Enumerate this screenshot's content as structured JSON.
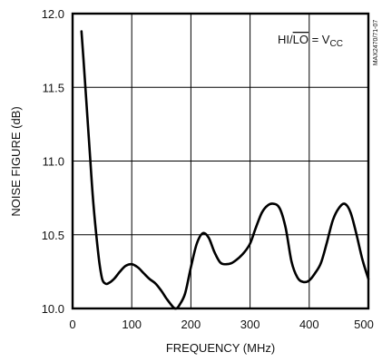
{
  "chart_data": {
    "type": "line",
    "xlabel": "FREQUENCY (MHz)",
    "ylabel": "NOISE FIGURE (dB)",
    "xlim": [
      0,
      500
    ],
    "ylim": [
      10.0,
      12.0
    ],
    "grid": true,
    "x_ticks": [
      "0",
      "100",
      "200",
      "300",
      "400",
      "500"
    ],
    "y_ticks": [
      "10.0",
      "10.5",
      "11.0",
      "11.5",
      "12.0"
    ],
    "annotation": {
      "prefix": "HI/",
      "overbar": "LO",
      "equals": " = V",
      "subscript": "CC"
    },
    "figure_id": "MAX2470/71-07",
    "series": [
      {
        "points": [
          [
            15,
            11.88
          ],
          [
            20,
            11.6
          ],
          [
            25,
            11.3
          ],
          [
            30,
            11.0
          ],
          [
            35,
            10.72
          ],
          [
            40,
            10.5
          ],
          [
            45,
            10.32
          ],
          [
            50,
            10.2
          ],
          [
            55,
            10.17
          ],
          [
            60,
            10.17
          ],
          [
            70,
            10.2
          ],
          [
            80,
            10.25
          ],
          [
            90,
            10.29
          ],
          [
            100,
            10.3
          ],
          [
            110,
            10.28
          ],
          [
            120,
            10.24
          ],
          [
            130,
            10.2
          ],
          [
            140,
            10.17
          ],
          [
            150,
            10.12
          ],
          [
            160,
            10.06
          ],
          [
            170,
            10.01
          ],
          [
            175,
            10.0
          ],
          [
            180,
            10.02
          ],
          [
            190,
            10.1
          ],
          [
            200,
            10.28
          ],
          [
            210,
            10.44
          ],
          [
            220,
            10.51
          ],
          [
            230,
            10.48
          ],
          [
            240,
            10.38
          ],
          [
            250,
            10.31
          ],
          [
            260,
            10.3
          ],
          [
            270,
            10.31
          ],
          [
            280,
            10.34
          ],
          [
            290,
            10.38
          ],
          [
            300,
            10.44
          ],
          [
            310,
            10.55
          ],
          [
            320,
            10.65
          ],
          [
            330,
            10.7
          ],
          [
            340,
            10.71
          ],
          [
            350,
            10.68
          ],
          [
            360,
            10.55
          ],
          [
            370,
            10.32
          ],
          [
            380,
            10.21
          ],
          [
            390,
            10.18
          ],
          [
            400,
            10.19
          ],
          [
            410,
            10.24
          ],
          [
            420,
            10.31
          ],
          [
            430,
            10.45
          ],
          [
            440,
            10.6
          ],
          [
            450,
            10.68
          ],
          [
            460,
            10.71
          ],
          [
            470,
            10.65
          ],
          [
            480,
            10.5
          ],
          [
            490,
            10.33
          ],
          [
            500,
            10.2
          ]
        ]
      }
    ]
  }
}
